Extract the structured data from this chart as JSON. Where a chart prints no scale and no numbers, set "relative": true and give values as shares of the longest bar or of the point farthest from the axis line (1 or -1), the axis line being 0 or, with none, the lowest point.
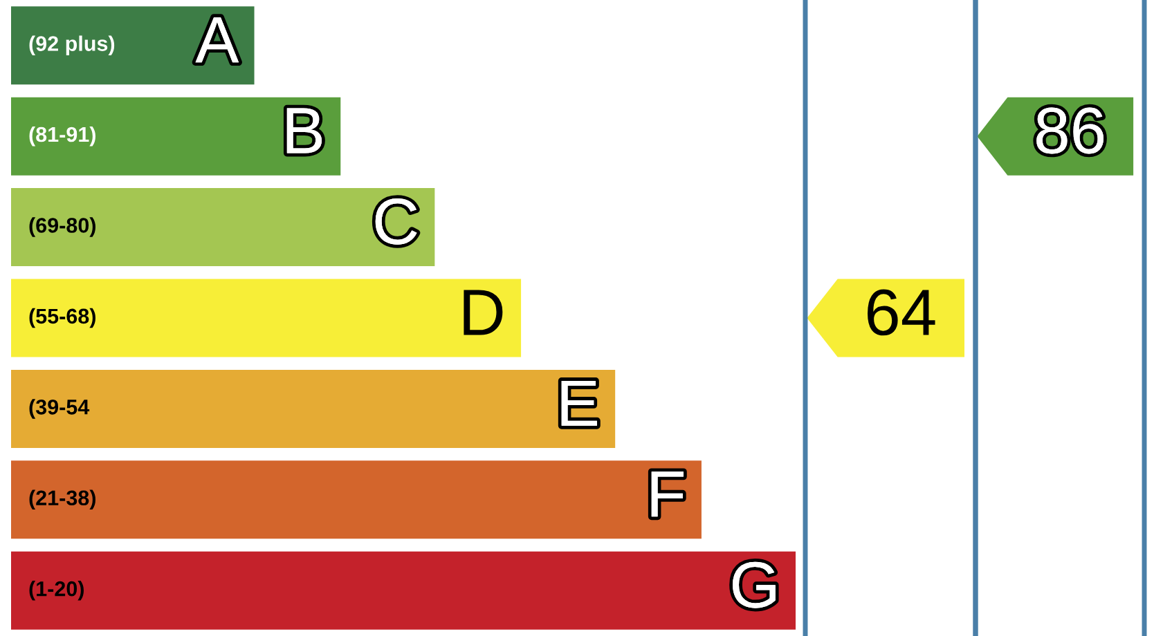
{
  "chart_data": [
    {
      "type": "bar",
      "orientation": "horizontal",
      "relative": true,
      "categories": [
        "(92 plus)",
        "(81-91)",
        "(69-80)",
        "(55-68)",
        "(39-54",
        "(21-38)",
        "(1-20)"
      ],
      "values": [
        0.31,
        0.42,
        0.54,
        0.65,
        0.77,
        0.88,
        1
      ],
      "colors": [
        "#3d7d46",
        "#5a9e3c",
        "#a4c652",
        "#f7ee37",
        "#e5ab34",
        "#d3652c",
        "#c4222b"
      ],
      "annotations": [
        {
          "text": "A",
          "x": 0.31,
          "y": "(92 plus)"
        },
        {
          "text": "B",
          "x": 0.42,
          "y": "(81-91)"
        },
        {
          "text": "C",
          "x": 0.54,
          "y": "(69-80)"
        },
        {
          "text": "D",
          "x": 0.65,
          "y": "(55-68)"
        },
        {
          "text": "E",
          "x": 0.77,
          "y": "(39-54"
        },
        {
          "text": "F",
          "x": 0.88,
          "y": "(21-38)"
        },
        {
          "text": "G",
          "x": 1,
          "y": "(1-20)"
        }
      ]
    },
    {
      "type": "other",
      "categories": [
        null,
        null,
        null,
        null,
        null,
        null,
        null
      ],
      "values": [
        null,
        null,
        null,
        64,
        null,
        null,
        null
      ],
      "colors": [
        null,
        null,
        null,
        "#f7ee37",
        null,
        null,
        null
      ],
      "data_labels": true
    },
    {
      "type": "other",
      "categories": [
        null,
        null,
        null,
        null,
        null,
        null,
        null
      ],
      "values": [
        null,
        86,
        null,
        null,
        null,
        null,
        null
      ],
      "colors": [
        null,
        "#5a9e3c",
        null,
        null,
        null,
        null,
        null
      ],
      "data_labels": true
    }
  ]
}
